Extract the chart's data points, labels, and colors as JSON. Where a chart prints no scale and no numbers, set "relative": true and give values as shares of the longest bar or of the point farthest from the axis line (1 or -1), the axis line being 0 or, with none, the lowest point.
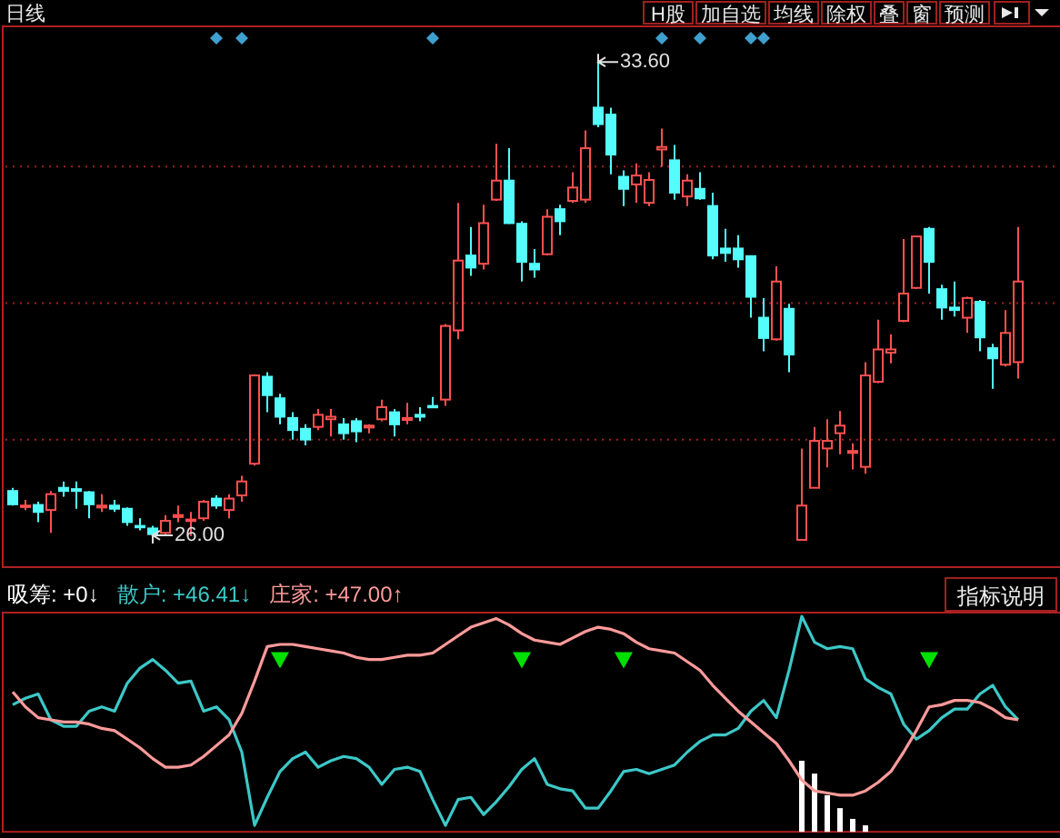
{
  "chart_data": [
    {
      "type": "candlestick",
      "categories": [
        null,
        null,
        null,
        null,
        null,
        null,
        null,
        null,
        null,
        null,
        null,
        null,
        null,
        null,
        null,
        null,
        null,
        null,
        null,
        null,
        null,
        null,
        null,
        null,
        null,
        null,
        null,
        null,
        null,
        null,
        null,
        null,
        null,
        null,
        null,
        null,
        null,
        null,
        null,
        null,
        null,
        null,
        null,
        null,
        null,
        null,
        null,
        null,
        null,
        null,
        null,
        null,
        null,
        null,
        null,
        null,
        null,
        null,
        null,
        null,
        null,
        null,
        null,
        null,
        null,
        null,
        null,
        null,
        null,
        null,
        null,
        null,
        null,
        null,
        null,
        null,
        null,
        null,
        null,
        null
      ],
      "ohlc": [
        [
          26.77,
          26.82,
          26.54,
          26.56
        ],
        [
          26.52,
          26.63,
          26.47,
          26.54
        ],
        [
          26.55,
          26.6,
          26.28,
          26.44
        ],
        [
          26.47,
          26.77,
          26.11,
          26.72
        ],
        [
          26.82,
          26.92,
          26.68,
          26.77
        ],
        [
          26.8,
          26.92,
          26.49,
          26.77
        ],
        [
          26.75,
          26.77,
          26.34,
          26.56
        ],
        [
          26.51,
          26.72,
          26.44,
          26.54
        ],
        [
          26.54,
          26.63,
          26.44,
          26.49
        ],
        [
          26.49,
          26.51,
          26.22,
          26.28
        ],
        [
          26.22,
          26.34,
          26.15,
          26.2
        ],
        [
          26.18,
          26.22,
          26.0,
          26.09
        ],
        [
          26.11,
          26.39,
          26.06,
          26.3
        ],
        [
          26.36,
          26.54,
          26.28,
          26.39
        ],
        [
          26.3,
          26.44,
          26.06,
          26.32
        ],
        [
          26.34,
          26.63,
          26.3,
          26.6
        ],
        [
          26.65,
          26.7,
          26.49,
          26.54
        ],
        [
          26.47,
          26.72,
          26.34,
          26.65
        ],
        [
          26.7,
          27.01,
          26.6,
          26.92
        ],
        [
          27.2,
          28.61,
          27.17,
          28.59
        ],
        [
          28.57,
          28.64,
          28.01,
          28.28
        ],
        [
          28.23,
          28.3,
          27.82,
          27.94
        ],
        [
          27.92,
          28.01,
          27.58,
          27.73
        ],
        [
          27.75,
          27.82,
          27.49,
          27.58
        ],
        [
          27.78,
          28.06,
          27.73,
          27.97
        ],
        [
          27.9,
          28.06,
          27.63,
          27.94
        ],
        [
          27.82,
          27.92,
          27.58,
          27.68
        ],
        [
          27.87,
          27.92,
          27.54,
          27.71
        ],
        [
          27.77,
          27.82,
          27.68,
          27.8
        ],
        [
          27.9,
          28.21,
          27.87,
          28.09
        ],
        [
          28.01,
          28.06,
          27.63,
          27.82
        ],
        [
          27.89,
          28.16,
          27.82,
          27.92
        ],
        [
          27.97,
          28.09,
          27.87,
          27.94
        ],
        [
          28.11,
          28.25,
          28.08,
          28.09
        ],
        [
          28.21,
          29.4,
          28.11,
          29.37
        ],
        [
          29.3,
          31.31,
          29.16,
          30.4
        ],
        [
          30.48,
          30.93,
          30.16,
          30.29
        ],
        [
          30.35,
          31.28,
          30.26,
          30.99
        ],
        [
          31.36,
          32.24,
          31.34,
          31.66
        ],
        [
          31.66,
          32.17,
          30.98,
          30.99
        ],
        [
          30.98,
          31.02,
          30.07,
          30.38
        ],
        [
          30.35,
          30.58,
          30.13,
          30.26
        ],
        [
          30.5,
          31.21,
          30.48,
          31.09
        ],
        [
          31.21,
          31.28,
          30.8,
          31.02
        ],
        [
          31.34,
          31.79,
          31.31,
          31.55
        ],
        [
          31.36,
          32.45,
          31.31,
          32.17
        ],
        [
          32.81,
          33.6,
          32.5,
          32.55
        ],
        [
          32.7,
          32.81,
          31.76,
          32.07
        ],
        [
          31.72,
          31.82,
          31.26,
          31.53
        ],
        [
          31.6,
          31.93,
          31.31,
          31.74
        ],
        [
          31.31,
          31.79,
          31.26,
          31.67
        ],
        [
          32.15,
          32.48,
          31.88,
          32.19
        ],
        [
          31.98,
          32.22,
          31.36,
          31.47
        ],
        [
          31.41,
          31.76,
          31.26,
          31.66
        ],
        [
          31.53,
          31.79,
          31.36,
          31.38
        ],
        [
          31.26,
          31.47,
          30.42,
          30.48
        ],
        [
          30.59,
          30.9,
          30.38,
          30.52
        ],
        [
          30.59,
          30.8,
          30.29,
          30.42
        ],
        [
          30.47,
          30.48,
          29.5,
          29.83
        ],
        [
          29.5,
          29.81,
          28.97,
          29.18
        ],
        [
          29.16,
          30.31,
          29.14,
          30.07
        ],
        [
          29.64,
          29.72,
          28.64,
          28.92
        ],
        [
          26.0,
          27.44,
          26.0,
          26.54
        ],
        [
          26.82,
          27.78,
          26.82,
          27.56
        ],
        [
          27.44,
          27.9,
          27.14,
          27.56
        ],
        [
          27.68,
          28.03,
          27.35,
          27.8
        ],
        [
          27.37,
          27.52,
          27.11,
          27.4
        ],
        [
          27.15,
          28.8,
          27.04,
          28.59
        ],
        [
          28.49,
          29.47,
          28.47,
          29.0
        ],
        [
          28.95,
          29.24,
          28.78,
          29.0
        ],
        [
          29.45,
          30.74,
          29.43,
          29.88
        ],
        [
          29.97,
          30.78,
          29.95,
          30.78
        ],
        [
          30.9,
          30.93,
          29.88,
          30.38
        ],
        [
          29.95,
          30.02,
          29.47,
          29.66
        ],
        [
          29.66,
          30.07,
          29.52,
          29.62
        ],
        [
          29.5,
          29.83,
          29.26,
          29.81
        ],
        [
          29.75,
          29.78,
          28.97,
          29.19
        ],
        [
          29.02,
          29.09,
          28.38,
          28.86
        ],
        [
          28.76,
          29.62,
          28.73,
          29.26
        ],
        [
          28.8,
          30.93,
          28.54,
          30.07
        ]
      ],
      "colors": [
        "#54fcfc",
        "#ff5050",
        "#54fcfc",
        "#ff5050",
        "#54fcfc",
        "#54fcfc",
        "#54fcfc",
        "#ff5050",
        "#54fcfc",
        "#54fcfc",
        "#54fcfc",
        "#54fcfc",
        "#ff5050",
        "#ff5050",
        "#ff5050",
        "#ff5050",
        "#54fcfc",
        "#ff5050",
        "#ff5050",
        "#ff5050",
        "#54fcfc",
        "#54fcfc",
        "#54fcfc",
        "#54fcfc",
        "#ff5050",
        "#ff5050",
        "#54fcfc",
        "#54fcfc",
        "#ff5050",
        "#ff5050",
        "#54fcfc",
        "#ff5050",
        "#54fcfc",
        "#54fcfc",
        "#ff5050",
        "#ff5050",
        "#54fcfc",
        "#ff5050",
        "#ff5050",
        "#54fcfc",
        "#54fcfc",
        "#54fcfc",
        "#ff5050",
        "#54fcfc",
        "#ff5050",
        "#ff5050",
        "#54fcfc",
        "#54fcfc",
        "#54fcfc",
        "#ff5050",
        "#ff5050",
        "#ff5050",
        "#54fcfc",
        "#ff5050",
        "#54fcfc",
        "#54fcfc",
        "#54fcfc",
        "#54fcfc",
        "#54fcfc",
        "#54fcfc",
        "#ff5050",
        "#54fcfc",
        "#ff5050",
        "#ff5050",
        "#ff5050",
        "#ff5050",
        "#ff5050",
        "#ff5050",
        "#ff5050",
        "#ff5050",
        "#ff5050",
        "#ff5050",
        "#54fcfc",
        "#54fcfc",
        "#54fcfc",
        "#ff5050",
        "#54fcfc",
        "#54fcfc",
        "#ff5050",
        "#ff5050"
      ],
      "ylim": [
        25.57,
        34.09
      ],
      "ref_lines": [
        {
          "axis": "y",
          "value": 31.88,
          "color": "#a02020",
          "line_style": "dotted"
        },
        {
          "axis": "y",
          "value": 29.73,
          "color": "#a02020",
          "line_style": "dotted"
        },
        {
          "axis": "y",
          "value": 27.58,
          "color": "#a02020",
          "line_style": "dotted"
        }
      ],
      "annotations": [
        "33.60",
        "26.00",
        "日线",
        "H股",
        "加自选",
        "均线",
        "除权",
        "叠",
        "窗",
        "预测"
      ]
    },
    {
      "type": "line",
      "relative": true,
      "categories": [
        null,
        null,
        null,
        null,
        null,
        null,
        null,
        null,
        null,
        null,
        null,
        null,
        null,
        null,
        null,
        null,
        null,
        null,
        null,
        null,
        null,
        null,
        null,
        null,
        null,
        null,
        null,
        null,
        null,
        null,
        null,
        null,
        null,
        null,
        null,
        null,
        null,
        null,
        null,
        null,
        null,
        null,
        null,
        null,
        null,
        null,
        null,
        null,
        null,
        null,
        null,
        null,
        null,
        null,
        null,
        null,
        null,
        null,
        null,
        null,
        null,
        null,
        null,
        null,
        null,
        null,
        null,
        null,
        null,
        null,
        null,
        null,
        null,
        null,
        null,
        null,
        null,
        null,
        null,
        null
      ],
      "series": [
        {
          "name": "吸筹: +0↓",
          "type": "bar",
          "color": "#ffffff",
          "values": [
            null,
            null,
            null,
            null,
            null,
            null,
            null,
            null,
            null,
            null,
            null,
            null,
            null,
            null,
            null,
            null,
            null,
            null,
            null,
            null,
            null,
            null,
            null,
            null,
            null,
            null,
            null,
            null,
            null,
            null,
            null,
            null,
            null,
            null,
            null,
            null,
            null,
            null,
            null,
            null,
            null,
            null,
            null,
            null,
            null,
            null,
            null,
            null,
            null,
            null,
            null,
            null,
            null,
            null,
            null,
            null,
            null,
            null,
            null,
            null,
            null,
            null,
            0.33,
            0.27,
            0.17,
            0.11,
            0.06,
            0.03,
            null,
            null,
            null,
            null,
            null,
            null,
            null,
            null,
            null,
            null,
            null,
            null
          ]
        },
        {
          "name": "散户: +46.41↓",
          "color": "#3cc8c8",
          "values": [
            0.59,
            0.62,
            0.64,
            0.52,
            0.49,
            0.49,
            0.56,
            0.58,
            0.56,
            0.69,
            0.76,
            0.8,
            0.75,
            0.69,
            0.7,
            0.56,
            0.58,
            0.52,
            0.37,
            0.03,
            0.16,
            0.28,
            0.34,
            0.37,
            0.3,
            0.33,
            0.35,
            0.34,
            0.3,
            0.22,
            0.29,
            0.3,
            0.28,
            0.15,
            0.03,
            0.15,
            0.16,
            0.08,
            0.14,
            0.21,
            0.29,
            0.34,
            0.22,
            0.2,
            0.19,
            0.11,
            0.11,
            0.19,
            0.28,
            0.29,
            0.27,
            0.29,
            0.31,
            0.37,
            0.42,
            0.45,
            0.45,
            0.48,
            0.56,
            0.61,
            0.53,
            0.75,
            1.0,
            0.88,
            0.85,
            0.86,
            0.85,
            0.71,
            0.67,
            0.64,
            0.5,
            0.43,
            0.47,
            0.53,
            0.57,
            0.57,
            0.64,
            0.68,
            0.58,
            0.52
          ]
        },
        {
          "name": "庄家: +47.00↑",
          "color": "#ff9a9a",
          "values": [
            0.65,
            0.58,
            0.53,
            0.52,
            0.51,
            0.51,
            0.5,
            0.48,
            0.47,
            0.43,
            0.39,
            0.34,
            0.3,
            0.3,
            0.31,
            0.35,
            0.4,
            0.45,
            0.55,
            0.7,
            0.86,
            0.87,
            0.87,
            0.86,
            0.85,
            0.84,
            0.83,
            0.81,
            0.8,
            0.8,
            0.81,
            0.82,
            0.82,
            0.83,
            0.87,
            0.91,
            0.95,
            0.97,
            0.99,
            0.96,
            0.92,
            0.89,
            0.88,
            0.87,
            0.9,
            0.93,
            0.95,
            0.94,
            0.92,
            0.88,
            0.85,
            0.84,
            0.83,
            0.79,
            0.75,
            0.68,
            0.62,
            0.56,
            0.51,
            0.46,
            0.41,
            0.33,
            0.24,
            0.19,
            0.18,
            0.17,
            0.17,
            0.19,
            0.23,
            0.28,
            0.37,
            0.47,
            0.58,
            0.59,
            0.61,
            0.61,
            0.6,
            0.57,
            0.53,
            0.52
          ]
        },
        {
          "type": "scatter",
          "marker": "triangle",
          "color": "#00e000",
          "values": [
            null,
            null,
            null,
            null,
            null,
            null,
            null,
            null,
            null,
            null,
            null,
            null,
            null,
            null,
            null,
            null,
            null,
            null,
            null,
            null,
            null,
            0.8,
            null,
            null,
            null,
            null,
            null,
            null,
            null,
            null,
            null,
            null,
            null,
            null,
            null,
            null,
            null,
            null,
            null,
            null,
            0.8,
            null,
            null,
            null,
            null,
            null,
            null,
            null,
            0.8,
            null,
            null,
            null,
            null,
            null,
            null,
            null,
            null,
            null,
            null,
            null,
            null,
            null,
            null,
            null,
            null,
            null,
            null,
            null,
            null,
            null,
            null,
            null,
            0.8,
            null,
            null,
            null,
            null,
            null,
            null,
            null
          ]
        }
      ],
      "annotations": [
        "指标说明"
      ]
    }
  ]
}
